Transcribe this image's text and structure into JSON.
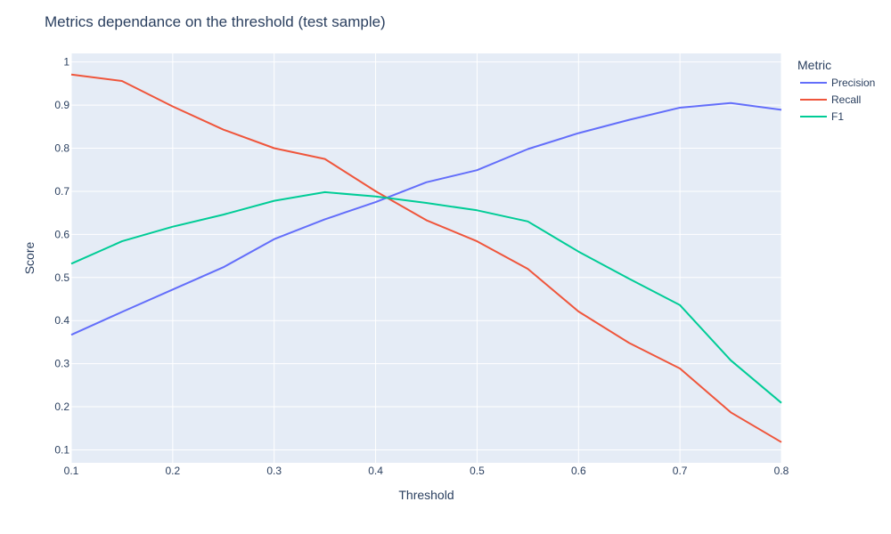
{
  "chart_data": {
    "type": "line",
    "title": "Metrics dependance on the threshold (test sample)",
    "xlabel": "Threshold",
    "ylabel": "Score",
    "xlim": [
      0.1,
      0.8
    ],
    "ylim": [
      0.07,
      1.02
    ],
    "xticks": [
      0.1,
      0.2,
      0.3,
      0.4,
      0.5,
      0.6,
      0.7,
      0.8
    ],
    "yticks": [
      0.1,
      0.2,
      0.3,
      0.4,
      0.5,
      0.6,
      0.7,
      0.8,
      0.9,
      1
    ],
    "xtick_labels": [
      "0.1",
      "0.2",
      "0.3",
      "0.4",
      "0.5",
      "0.6",
      "0.7",
      "0.8"
    ],
    "ytick_labels": [
      "0.1",
      "0.2",
      "0.3",
      "0.4",
      "0.5",
      "0.6",
      "0.7",
      "0.8",
      "0.9",
      "1"
    ],
    "grid": true,
    "legend_title": "Metric",
    "legend_position": "right",
    "x": [
      0.1,
      0.15,
      0.2,
      0.25,
      0.3,
      0.35,
      0.4,
      0.45,
      0.5,
      0.55,
      0.6,
      0.65,
      0.7,
      0.75,
      0.8
    ],
    "series": [
      {
        "name": "Precision",
        "color": "#636efa",
        "values": [
          0.367,
          0.42,
          0.472,
          0.524,
          0.589,
          0.635,
          0.675,
          0.721,
          0.749,
          0.798,
          0.835,
          0.866,
          0.894,
          0.905,
          0.889
        ]
      },
      {
        "name": "Recall",
        "color": "#ef553b",
        "values": [
          0.971,
          0.956,
          0.897,
          0.843,
          0.8,
          0.775,
          0.7,
          0.633,
          0.584,
          0.52,
          0.421,
          0.348,
          0.289,
          0.187,
          0.118
        ]
      },
      {
        "name": "F1",
        "color": "#00cc96",
        "values": [
          0.532,
          0.584,
          0.618,
          0.646,
          0.678,
          0.698,
          0.688,
          0.673,
          0.656,
          0.63,
          0.56,
          0.497,
          0.436,
          0.308,
          0.209
        ]
      }
    ]
  }
}
